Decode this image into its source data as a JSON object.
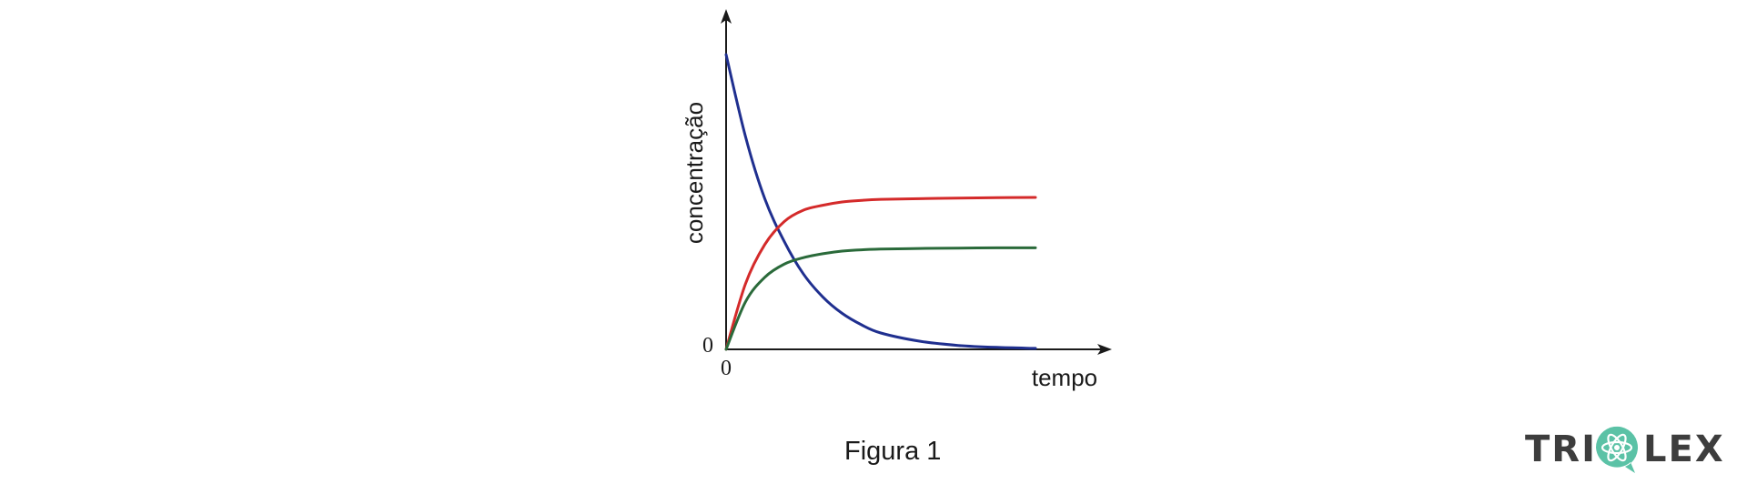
{
  "chart_data": {
    "type": "line",
    "xlabel": "tempo",
    "ylabel": "concentração",
    "x_tick_labels": [
      "0"
    ],
    "y_tick_labels": [
      "0"
    ],
    "xlim": [
      0,
      10
    ],
    "ylim": [
      0,
      10
    ],
    "grid": false,
    "series": [
      {
        "color": "#1f2f8f",
        "x": [
          0,
          0.5,
          1,
          1.5,
          2,
          2.5,
          3,
          3.5,
          4,
          5,
          6,
          7,
          8
        ],
        "y": [
          9.0,
          6.5,
          4.6,
          3.3,
          2.3,
          1.6,
          1.1,
          0.75,
          0.5,
          0.25,
          0.12,
          0.06,
          0.03
        ]
      },
      {
        "color": "#d42a2a",
        "x": [
          0,
          0.5,
          1,
          1.5,
          2,
          2.5,
          3,
          3.5,
          4,
          5,
          6,
          7,
          8
        ],
        "y": [
          0,
          2.0,
          3.2,
          3.9,
          4.25,
          4.4,
          4.5,
          4.55,
          4.58,
          4.6,
          4.62,
          4.63,
          4.64
        ]
      },
      {
        "color": "#2a6a3a",
        "x": [
          0,
          0.5,
          1,
          1.5,
          2,
          2.5,
          3,
          3.5,
          4,
          5,
          6,
          7,
          8
        ],
        "y": [
          0,
          1.45,
          2.2,
          2.6,
          2.8,
          2.92,
          3.0,
          3.04,
          3.06,
          3.08,
          3.09,
          3.1,
          3.1
        ]
      }
    ]
  },
  "caption": "Figura 1",
  "logo": {
    "left_text": "TRI",
    "right_text": "LEX",
    "text_color": "#3d3d3d",
    "accent_color": "#5bc2a6",
    "icon": "atom-icon"
  }
}
